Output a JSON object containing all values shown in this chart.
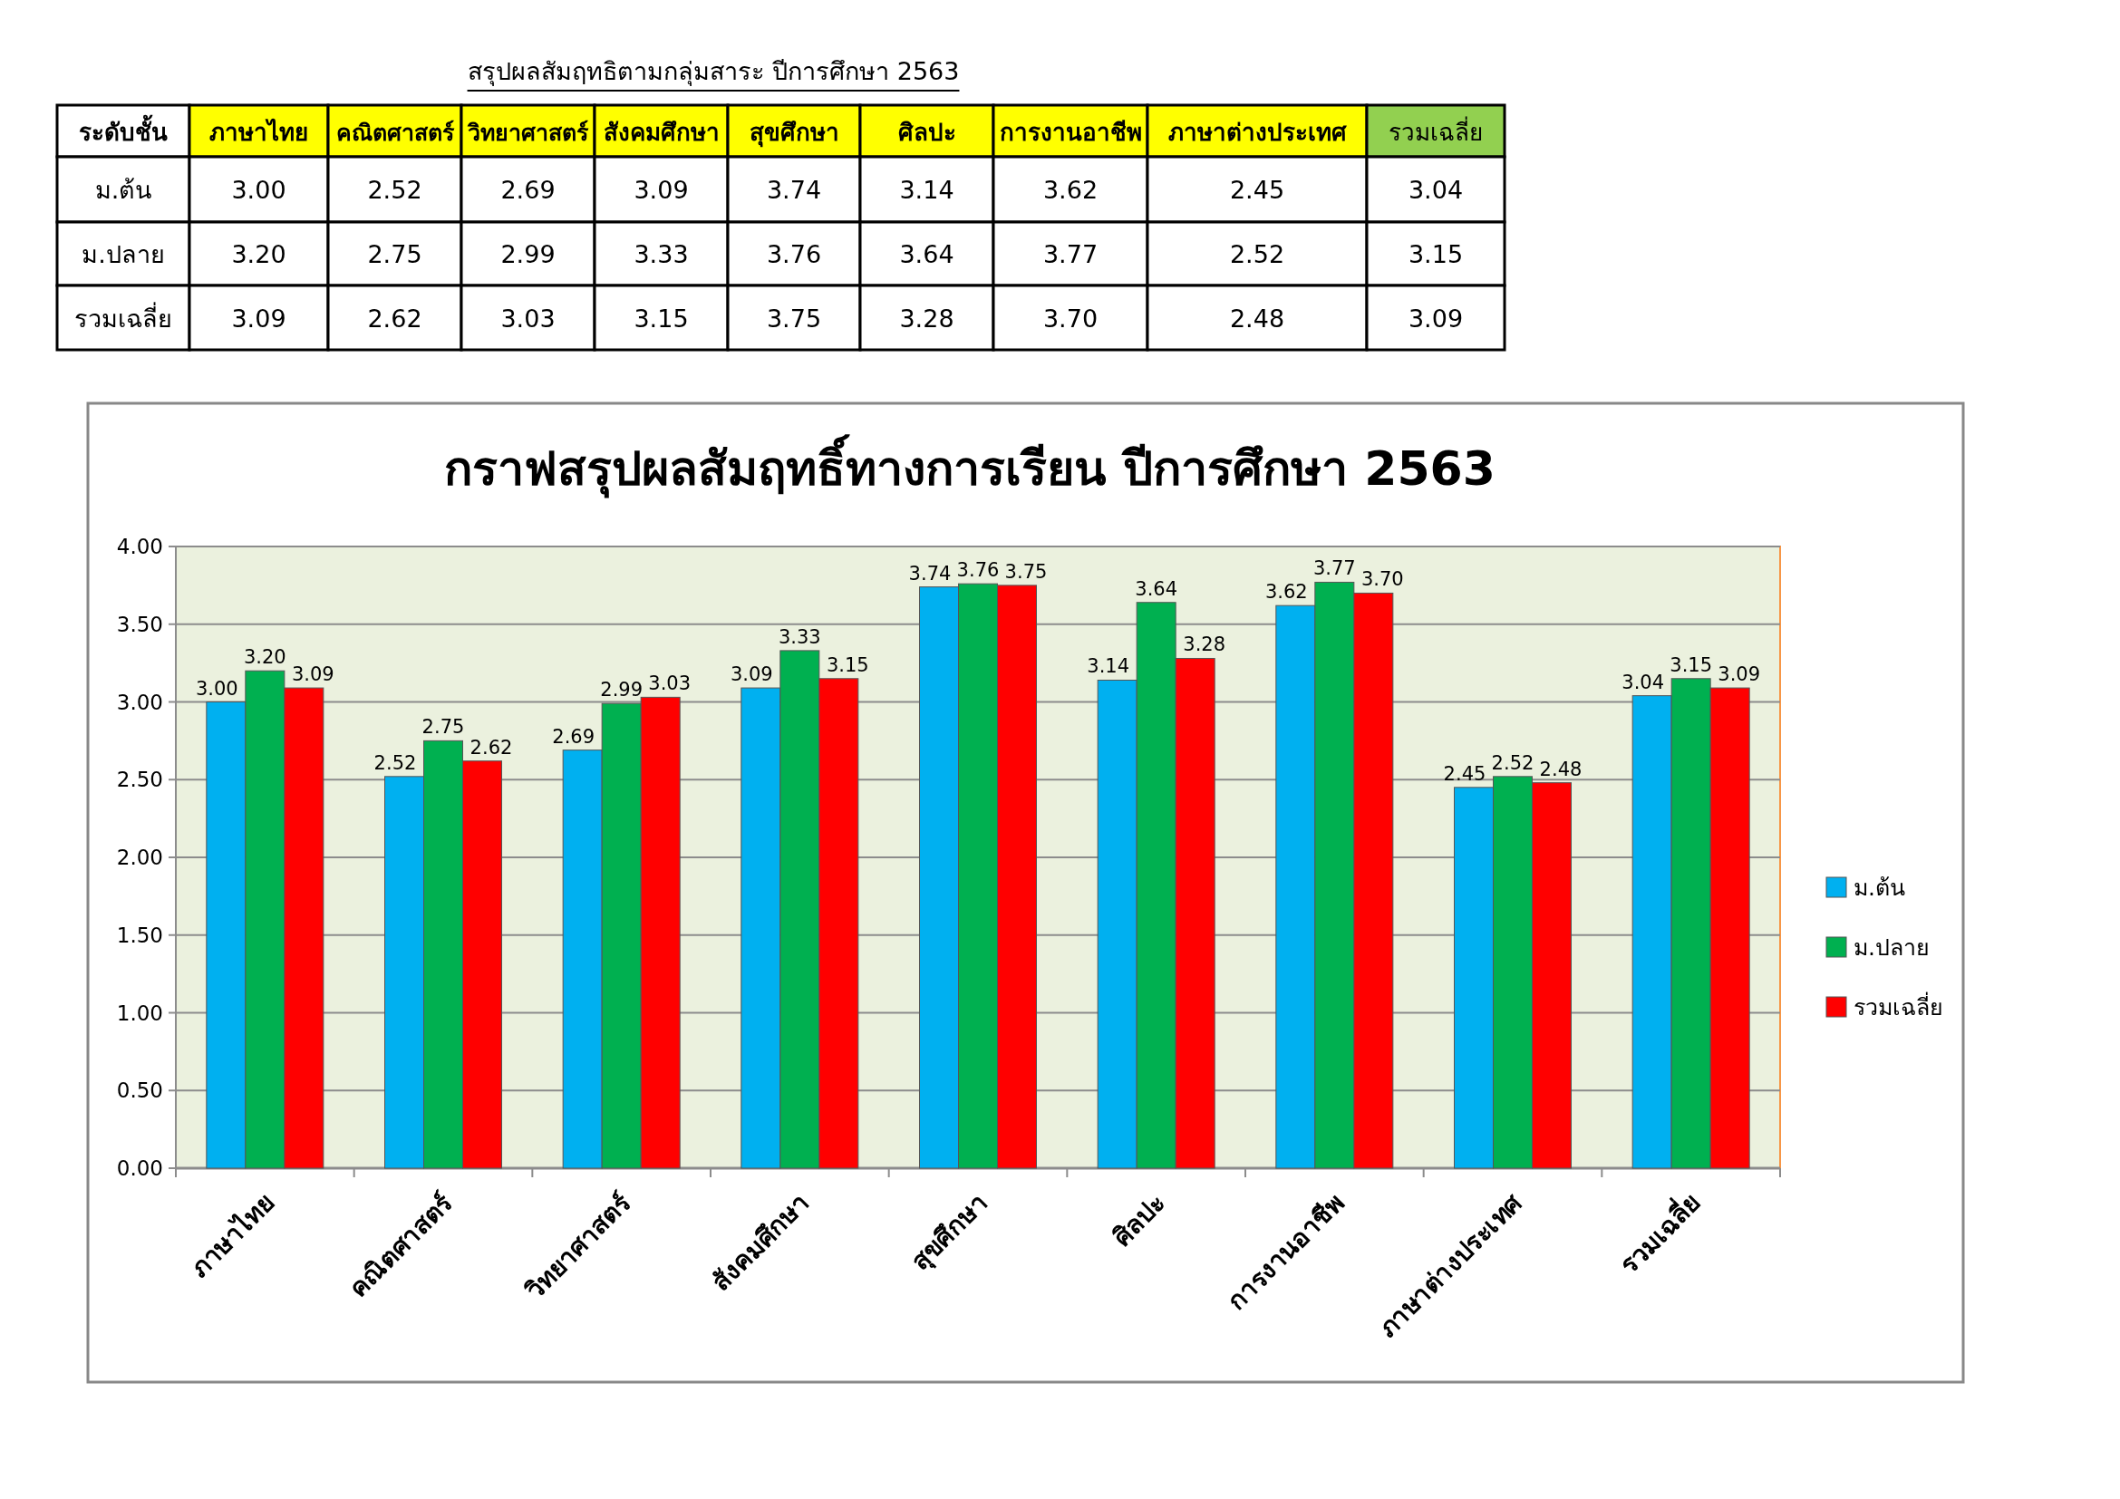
{
  "chart_data": {
    "type": "bar",
    "title": "กราฟสรุปผลสัมฤทธิ์ทางการเรียน ปีการศึกษา 2563",
    "categories": [
      "ภาษาไทย",
      "คณิตศาสตร์",
      "วิทยาศาสตร์",
      "สังคมศึกษา",
      "สุขศึกษา",
      "ศิลปะ",
      "การงานอาชีพ",
      "ภาษาต่างประเทศ",
      "รวมเฉลี่ย"
    ],
    "series": [
      {
        "name": "ม.ต้น",
        "color": "#00b0f0",
        "values": [
          3.0,
          2.52,
          2.69,
          3.09,
          3.74,
          3.14,
          3.62,
          2.45,
          3.04
        ],
        "value_labels": [
          "3.00",
          "2.52",
          "2.69",
          "3.09",
          "3.74",
          "3.14",
          "3.62",
          "2.45",
          "3.04"
        ]
      },
      {
        "name": "ม.ปลาย",
        "color": "#00b050",
        "values": [
          3.2,
          2.75,
          2.99,
          3.33,
          3.76,
          3.64,
          3.77,
          2.52,
          3.15
        ],
        "value_labels": [
          "3.20",
          "2.75",
          "2.99",
          "3.33",
          "3.76",
          "3.64",
          "3.77",
          "2.52",
          "3.15"
        ]
      },
      {
        "name": "รวมเฉลี่ย",
        "color": "#ff0000",
        "values": [
          3.09,
          2.62,
          3.03,
          3.15,
          3.75,
          3.28,
          3.7,
          2.48,
          3.09
        ],
        "value_labels": [
          "3.09",
          "2.62",
          "3.03",
          "3.15",
          "3.75",
          "3.28",
          "3.70",
          "2.48",
          "3.09"
        ]
      }
    ],
    "ylim": [
      0,
      4
    ],
    "yticks": [
      {
        "value": 0,
        "label": "0.00"
      },
      {
        "value": 0.5,
        "label": "0.50"
      },
      {
        "value": 1,
        "label": "1.00"
      },
      {
        "value": 1.5,
        "label": "1.50"
      },
      {
        "value": 2,
        "label": "2.00"
      },
      {
        "value": 2.5,
        "label": "2.50"
      },
      {
        "value": 3,
        "label": "3.00"
      },
      {
        "value": 3.5,
        "label": "3.50"
      },
      {
        "value": 4,
        "label": "4.00"
      }
    ],
    "grid": "y",
    "legend": "right",
    "annotations": [
      "สรุปผลสัมฤทธิตามกลุ่มสาระ ปีการศึกษา 2563",
      "ระดับชั้น"
    ]
  }
}
